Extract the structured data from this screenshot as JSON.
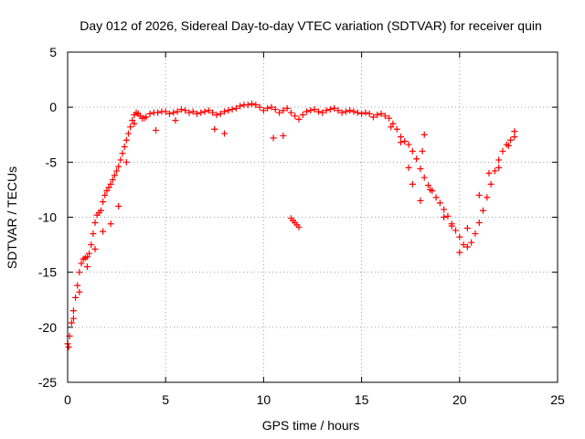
{
  "chart_data": {
    "type": "scatter",
    "title": "Day 012 of 2026, Sidereal Day-to-day VTEC variation (SDTVAR) for receiver quin",
    "xlabel": "GPS time / hours",
    "ylabel": "SDTVAR / TECUs",
    "xlim": [
      0,
      25
    ],
    "ylim": [
      -25,
      5
    ],
    "xticks": [
      0,
      5,
      10,
      15,
      20,
      25
    ],
    "yticks": [
      -25,
      -20,
      -15,
      -10,
      -5,
      0,
      5
    ],
    "grid": true,
    "marker": "+",
    "series": [
      {
        "name": "SDTVAR",
        "color": "#ff0000",
        "x": [
          0.0,
          0.1,
          0.2,
          0.3,
          0.4,
          0.5,
          0.6,
          0.7,
          0.8,
          0.9,
          1.0,
          1.1,
          1.2,
          1.3,
          1.4,
          1.5,
          1.6,
          1.7,
          1.8,
          1.9,
          2.0,
          2.1,
          2.2,
          2.3,
          2.4,
          2.5,
          2.6,
          2.7,
          2.8,
          2.9,
          3.0,
          3.1,
          3.2,
          3.3,
          3.4,
          3.5,
          3.6,
          3.7,
          3.8,
          3.9,
          4.0,
          4.2,
          4.4,
          4.6,
          4.8,
          5.0,
          5.2,
          5.4,
          5.6,
          5.8,
          6.0,
          6.2,
          6.4,
          6.6,
          6.8,
          7.0,
          7.2,
          7.4,
          7.6,
          7.8,
          8.0,
          8.2,
          8.4,
          8.6,
          8.8,
          9.0,
          9.2,
          9.4,
          9.6,
          9.8,
          10.0,
          10.2,
          10.4,
          10.6,
          10.8,
          11.0,
          11.2,
          11.4,
          11.6,
          11.8,
          12.0,
          12.2,
          12.4,
          12.6,
          12.8,
          13.0,
          13.2,
          13.4,
          13.6,
          13.8,
          14.0,
          14.2,
          14.4,
          14.6,
          14.8,
          15.0,
          15.2,
          15.4,
          15.6,
          15.8,
          16.0,
          16.2,
          16.4,
          16.6,
          16.8,
          17.0,
          17.2,
          17.4,
          17.6,
          17.8,
          18.0,
          18.2,
          18.4,
          18.6,
          18.8,
          19.0,
          19.2,
          19.4,
          19.6,
          19.8,
          20.0,
          20.2,
          20.4,
          20.6,
          20.8,
          21.0,
          21.2,
          21.4,
          21.6,
          21.8,
          22.0,
          22.2,
          22.4,
          22.6,
          22.8,
          0.05,
          0.3,
          0.6,
          1.0,
          1.4,
          1.8,
          2.2,
          2.6,
          3.0,
          3.4,
          4.5,
          5.5,
          7.5,
          8.0,
          10.5,
          11.0,
          11.4,
          11.5,
          11.6,
          11.7,
          11.8,
          16.5,
          17.0,
          17.4,
          17.6,
          18.0,
          18.1,
          18.2,
          18.5,
          19.2,
          19.6,
          20.0,
          20.4,
          21.0,
          21.5,
          22.0,
          22.5,
          22.8
        ],
        "y": [
          -21.5,
          -20.8,
          -19.6,
          -18.5,
          -17.3,
          -16.2,
          -15.0,
          -14.2,
          -13.8,
          -13.7,
          -13.6,
          -13.3,
          -12.5,
          -11.5,
          -10.5,
          -9.8,
          -9.6,
          -9.4,
          -8.6,
          -8.0,
          -7.6,
          -7.3,
          -7.0,
          -6.6,
          -6.2,
          -5.8,
          -5.4,
          -4.8,
          -4.2,
          -3.6,
          -3.0,
          -2.4,
          -1.8,
          -1.2,
          -0.7,
          -0.5,
          -0.6,
          -0.8,
          -1.0,
          -1.0,
          -0.9,
          -0.6,
          -0.5,
          -0.5,
          -0.4,
          -0.4,
          -0.6,
          -0.5,
          -0.4,
          -0.2,
          -0.3,
          -0.5,
          -0.4,
          -0.6,
          -0.5,
          -0.4,
          -0.3,
          -0.5,
          -0.7,
          -0.6,
          -0.4,
          -0.3,
          -0.2,
          -0.1,
          0.1,
          0.2,
          0.2,
          0.3,
          0.2,
          0.0,
          -0.3,
          -0.1,
          0.0,
          -0.2,
          -0.5,
          -0.3,
          -0.1,
          -0.5,
          -0.8,
          -1.1,
          -0.7,
          -0.4,
          -0.3,
          -0.2,
          -0.4,
          -0.5,
          -0.3,
          -0.2,
          -0.1,
          -0.3,
          -0.5,
          -0.4,
          -0.3,
          -0.4,
          -0.5,
          -0.6,
          -0.5,
          -0.6,
          -0.9,
          -0.7,
          -0.6,
          -0.8,
          -1.0,
          -1.5,
          -2.0,
          -2.7,
          -3.1,
          -3.4,
          -4.0,
          -4.7,
          -5.6,
          -6.4,
          -7.1,
          -7.6,
          -8.2,
          -8.7,
          -9.3,
          -9.9,
          -10.6,
          -11.2,
          -11.8,
          -12.5,
          -12.7,
          -12.3,
          -11.5,
          -10.5,
          -9.4,
          -8.2,
          -7.0,
          -5.8,
          -4.8,
          -4.0,
          -3.4,
          -3.0,
          -2.7,
          -21.8,
          -19.2,
          -16.8,
          -14.5,
          -12.9,
          -11.3,
          -10.6,
          -9.0,
          -5.0,
          -1.5,
          -2.1,
          -1.2,
          -2.0,
          -2.4,
          -2.8,
          -2.6,
          -10.1,
          -10.3,
          -10.5,
          -10.7,
          -10.9,
          -1.8,
          -3.2,
          -5.5,
          -7.0,
          -8.5,
          -4.0,
          -2.5,
          -7.5,
          -10.0,
          -10.8,
          -13.2,
          -11.0,
          -8.0,
          -6.0,
          -5.5,
          -3.5,
          -2.2
        ]
      }
    ]
  }
}
